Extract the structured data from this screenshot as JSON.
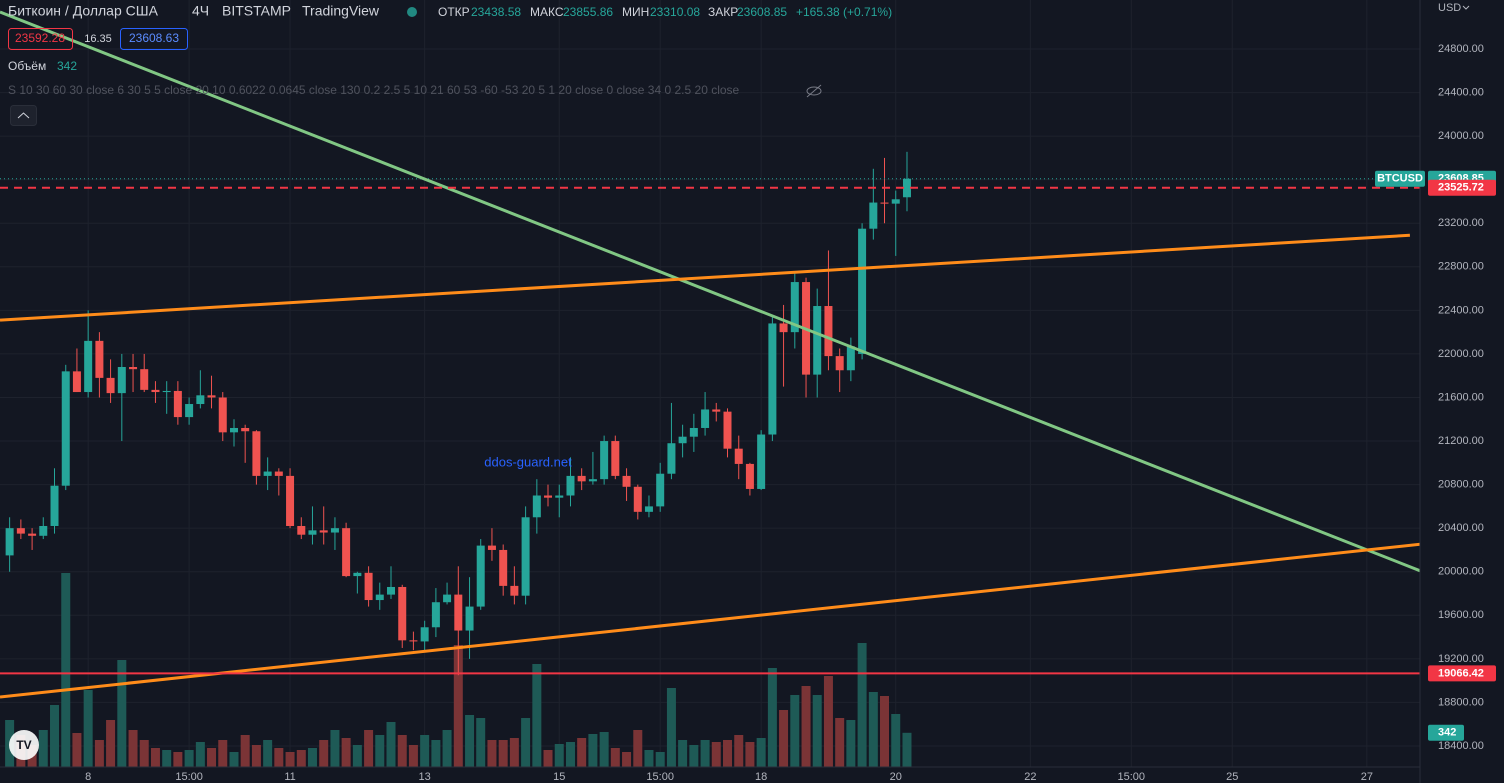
{
  "header": {
    "symbol": "Биткоин / Доллар США",
    "interval": "4Ч",
    "exchange": "BITSTAMP",
    "source": "TradingView",
    "open_label": "ОТКР",
    "high_label": "МАКС",
    "low_label": "МИН",
    "close_label": "ЗАКР",
    "change": "+165.38 (+0.71%)",
    "bid": 23592.28,
    "spread": 16.35,
    "ask": 23608.63,
    "volume_label": "Объём",
    "indicator": "S   10 30 60 30 close 6 30 5 5 close 20 10 0.6022 0.0645 close 130 0.2 2.5 5 10 21 60 53 -60 -53 20 5 1 20 close 0 close 34 0 2.5 20 close",
    "watermark": "ddos-guard.net",
    "currency": "USD",
    "ticker": "BTCUSD"
  },
  "chart_data": {
    "type": "candlestick",
    "x": [
      6.833,
      7,
      7.167,
      7.333,
      7.5,
      7.667,
      7.833,
      8,
      8.167,
      8.333,
      8.5,
      8.667,
      8.833,
      9,
      9.167,
      9.333,
      9.5,
      9.667,
      9.833,
      10,
      10.167,
      10.333,
      10.5,
      10.667,
      10.833,
      11,
      11.167,
      11.333,
      11.5,
      11.667,
      11.833,
      12,
      12.167,
      12.333,
      12.5,
      12.667,
      12.833,
      13,
      13.167,
      13.333,
      13.5,
      13.667,
      13.833,
      14,
      14.167,
      14.333,
      14.5,
      14.667,
      14.833,
      15,
      15.167,
      15.333,
      15.5,
      15.667,
      15.833,
      16,
      16.167,
      16.333,
      16.5,
      16.667,
      16.833,
      17,
      17.167,
      17.333,
      17.5,
      17.667,
      17.833,
      18,
      18.167,
      18.333,
      18.5,
      18.667,
      18.833,
      19,
      19.167,
      19.333,
      19.5,
      19.667,
      19.833,
      20,
      20.167
    ],
    "open": [
      20150,
      20400,
      20350,
      20330,
      20420,
      20790,
      21840,
      21650,
      22120,
      21780,
      21640,
      21880,
      21860,
      21670,
      21650,
      21660,
      21420,
      21540,
      21620,
      21600,
      21280,
      21320,
      21290,
      20880,
      20920,
      20880,
      20420,
      20340,
      20380,
      20360,
      20400,
      19960,
      19990,
      19740,
      19790,
      19860,
      19370,
      19360,
      19490,
      19720,
      19790,
      19460,
      19680,
      20240,
      20200,
      19870,
      19780,
      20500,
      20700,
      20680,
      20700,
      20880,
      20830,
      20850,
      21200,
      20880,
      20780,
      20550,
      20600,
      20900,
      21180,
      21240,
      21320,
      21490,
      21470,
      21130,
      20990,
      20760,
      21260,
      22280,
      22200,
      22660,
      21810,
      22440,
      21980,
      21850,
      22000,
      23150,
      23390,
      23380,
      23438.58
    ],
    "high": [
      20500,
      20480,
      20400,
      20500,
      20950,
      21900,
      22050,
      22400,
      22200,
      21950,
      22000,
      22000,
      22000,
      21750,
      21750,
      21750,
      21600,
      21850,
      21800,
      21650,
      21400,
      21350,
      21300,
      21050,
      20950,
      20950,
      20500,
      20600,
      20600,
      20500,
      20450,
      20000,
      20050,
      19900,
      20050,
      19880,
      19450,
      19550,
      19850,
      19900,
      20050,
      19950,
      20300,
      20400,
      20250,
      20050,
      20600,
      20850,
      20800,
      20800,
      21050,
      20950,
      21100,
      21250,
      21250,
      20950,
      20800,
      20700,
      21000,
      21550,
      21350,
      21450,
      21650,
      21550,
      21500,
      21250,
      21000,
      21300,
      22350,
      22450,
      22750,
      22700,
      22600,
      22950,
      22050,
      22150,
      23200,
      23700,
      23800,
      23500,
      23855.86
    ],
    "low": [
      20000,
      20300,
      20200,
      20300,
      20350,
      20750,
      21650,
      21600,
      21600,
      21550,
      21200,
      21650,
      21650,
      21550,
      21450,
      21350,
      21350,
      21500,
      21500,
      21200,
      21150,
      21000,
      20800,
      20750,
      20700,
      20400,
      20300,
      20250,
      20250,
      20200,
      19950,
      19800,
      19680,
      19650,
      19750,
      19300,
      19280,
      19280,
      19400,
      19700,
      19050,
      19200,
      19650,
      20100,
      19780,
      19700,
      19700,
      20350,
      20600,
      20500,
      20600,
      20750,
      20800,
      20800,
      20850,
      20650,
      20480,
      20500,
      20550,
      20850,
      21050,
      21100,
      21250,
      21380,
      21050,
      20850,
      20700,
      20750,
      21200,
      21700,
      22050,
      21600,
      21600,
      21850,
      21650,
      21750,
      21950,
      23050,
      23200,
      22900,
      23310.08
    ],
    "close": [
      20400,
      20350,
      20330,
      20420,
      20790,
      21840,
      21650,
      22120,
      21780,
      21640,
      21880,
      21860,
      21670,
      21650,
      21660,
      21420,
      21540,
      21620,
      21600,
      21280,
      21320,
      21290,
      20880,
      20920,
      20880,
      20420,
      20340,
      20380,
      20360,
      20400,
      19960,
      19990,
      19740,
      19790,
      19860,
      19370,
      19360,
      19490,
      19720,
      19790,
      19460,
      19680,
      20240,
      20200,
      19870,
      19780,
      20500,
      20700,
      20680,
      20700,
      20880,
      20830,
      20850,
      21200,
      20880,
      20780,
      20550,
      20600,
      20900,
      21180,
      21240,
      21320,
      21490,
      21470,
      21130,
      20990,
      20760,
      21260,
      22280,
      22200,
      22660,
      21810,
      22440,
      21980,
      21850,
      22070,
      23150,
      23390,
      23380,
      23420,
      23608.85
    ],
    "volume": [
      470,
      320,
      220,
      370,
      620,
      1940,
      340,
      770,
      270,
      470,
      1070,
      370,
      270,
      190,
      170,
      150,
      170,
      250,
      190,
      270,
      150,
      320,
      220,
      270,
      190,
      150,
      170,
      190,
      270,
      370,
      290,
      220,
      370,
      320,
      450,
      320,
      220,
      320,
      270,
      370,
      1220,
      520,
      490,
      270,
      270,
      290,
      490,
      1030,
      170,
      230,
      250,
      290,
      330,
      350,
      190,
      150,
      370,
      170,
      150,
      790,
      270,
      220,
      270,
      250,
      270,
      320,
      250,
      290,
      990,
      570,
      720,
      810,
      720,
      910,
      490,
      470,
      1240,
      750,
      710,
      530,
      342
    ],
    "up_color": "#26a69a",
    "down_color": "#ef5350",
    "volume_up_color": "#1e5a56",
    "volume_down_color": "#7b3436",
    "xlim": [
      6.69,
      27.79
    ],
    "xticks": [
      8,
      {
        "value": 9.5,
        "label": "15:00"
      },
      11,
      13,
      15,
      {
        "value": 16.5,
        "label": "15:00"
      },
      18,
      20,
      22,
      {
        "value": 23.5,
        "label": "15:00"
      },
      25,
      27
    ],
    "ylim": [
      18060,
      25250
    ],
    "yticks": [
      {
        "value": 18400,
        "label": "18400.00"
      },
      {
        "value": 18800,
        "label": "18800.00"
      },
      {
        "value": 19200,
        "label": "19200.00"
      },
      {
        "value": 19600,
        "label": "19600.00"
      },
      {
        "value": 20000,
        "label": "20000.00"
      },
      {
        "value": 20400,
        "label": "20400.00"
      },
      {
        "value": 20800,
        "label": "20800.00"
      },
      {
        "value": 21200,
        "label": "21200.00"
      },
      {
        "value": 21600,
        "label": "21600.00"
      },
      {
        "value": 22000,
        "label": "22000.00"
      },
      {
        "value": 22400,
        "label": "22400.00"
      },
      {
        "value": 22800,
        "label": "22800.00"
      },
      {
        "value": 23200,
        "label": "23200.00"
      },
      {
        "value": 23600,
        "label": "23600.00"
      },
      {
        "value": 24000,
        "label": "24000.00"
      },
      {
        "value": 24400,
        "label": "24400.00"
      },
      {
        "value": 24800,
        "label": "24800.00"
      }
    ],
    "grid": true,
    "lines": [
      {
        "color": "#81c784",
        "x": [
          6.69,
          27.91
        ],
        "y": [
          25140,
          19980
        ]
      },
      {
        "color": "#ff8c1a",
        "x": [
          6.69,
          27.64
        ],
        "y": [
          22310,
          23090
        ]
      },
      {
        "color": "#ff8c1a",
        "x": [
          6.69,
          27.91
        ],
        "y": [
          18850,
          20260
        ]
      }
    ],
    "levels": [
      {
        "value": 23525.72,
        "color": "#f23645",
        "style": "dashed"
      },
      {
        "value": 19066.42,
        "color": "#f23645",
        "style": "solid"
      }
    ]
  }
}
